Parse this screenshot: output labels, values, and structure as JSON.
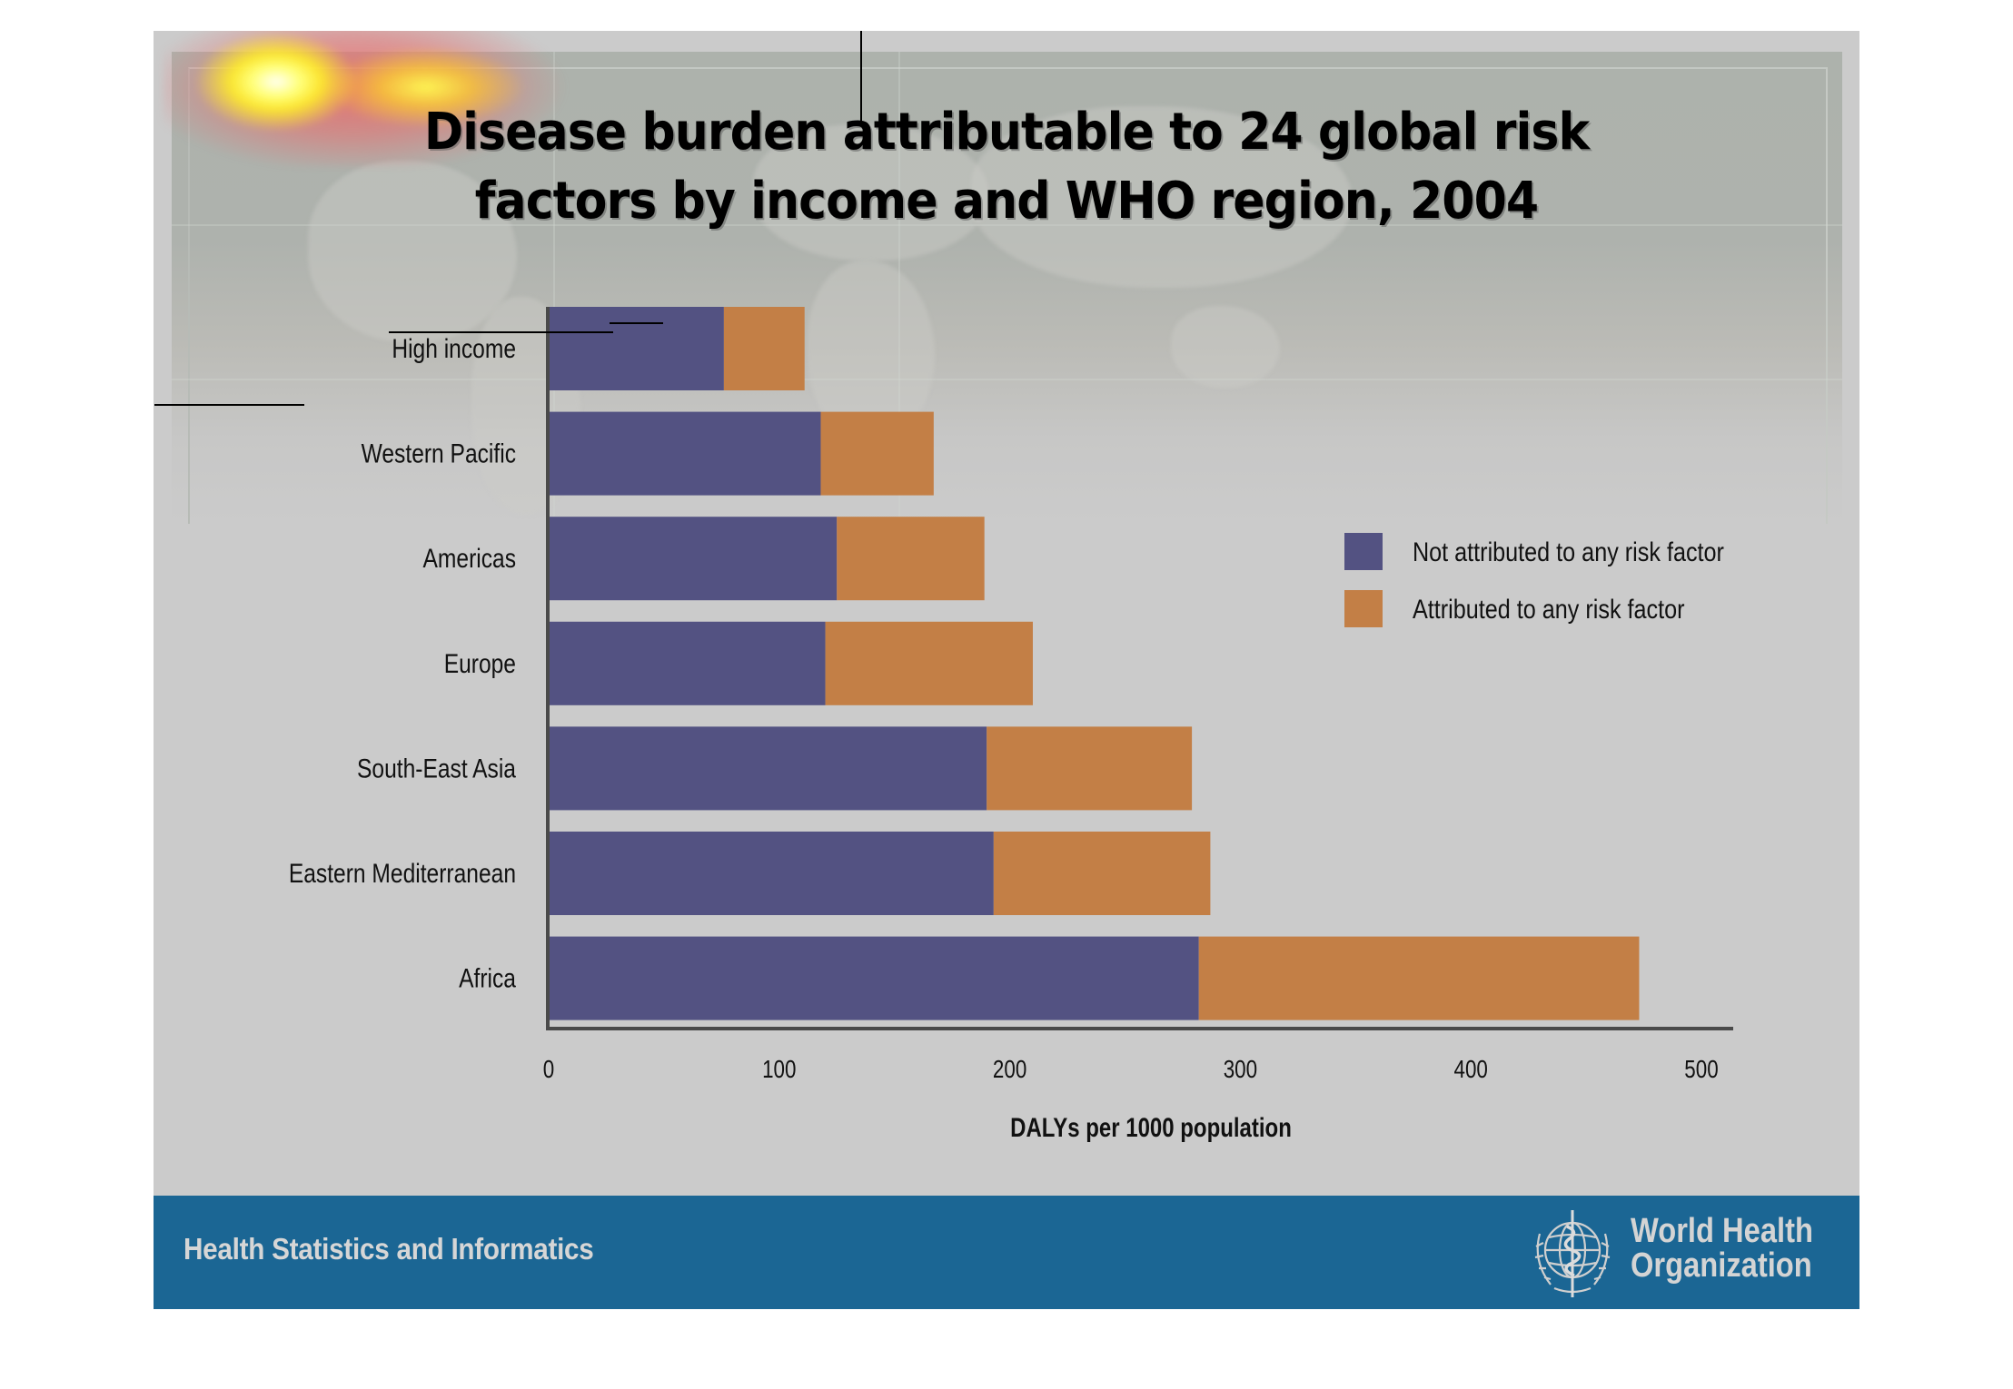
{
  "slide": {
    "title_lines": [
      "Disease burden attributable to 24 global risk",
      "factors by income and WHO region, 2004"
    ],
    "footer": {
      "left_text": "Health Statistics and Informatics",
      "org_name_lines": [
        "World Health",
        "Organization"
      ],
      "logo_icon": "who-emblem-icon"
    }
  },
  "colors": {
    "not_attributed": "#535282",
    "attributed": "#c37f46",
    "footer_bg": "#1b6694",
    "slide_bg": "#cbcbcb"
  },
  "chart_data": {
    "type": "bar",
    "orientation": "horizontal",
    "stacked": true,
    "title": "Disease burden attributable to 24 global risk factors by income and WHO region, 2004",
    "categories": [
      "High income",
      "Western Pacific",
      "Americas",
      "Europe",
      "South-East Asia",
      "Eastern Mediterranean",
      "Africa"
    ],
    "series": [
      {
        "name": "Not attributed to any risk factor",
        "color": "#535282",
        "values": [
          76,
          118,
          125,
          120,
          190,
          193,
          282
        ]
      },
      {
        "name": "Attributed to any risk factor",
        "color": "#c37f46",
        "values": [
          35,
          49,
          64,
          90,
          89,
          94,
          191
        ]
      }
    ],
    "xlabel": "DALYs per 1000 population",
    "ylabel": "",
    "xlim": [
      0,
      500
    ],
    "xticks": [
      0,
      100,
      200,
      300,
      400,
      500
    ],
    "grid": false,
    "legend_position": "right"
  }
}
